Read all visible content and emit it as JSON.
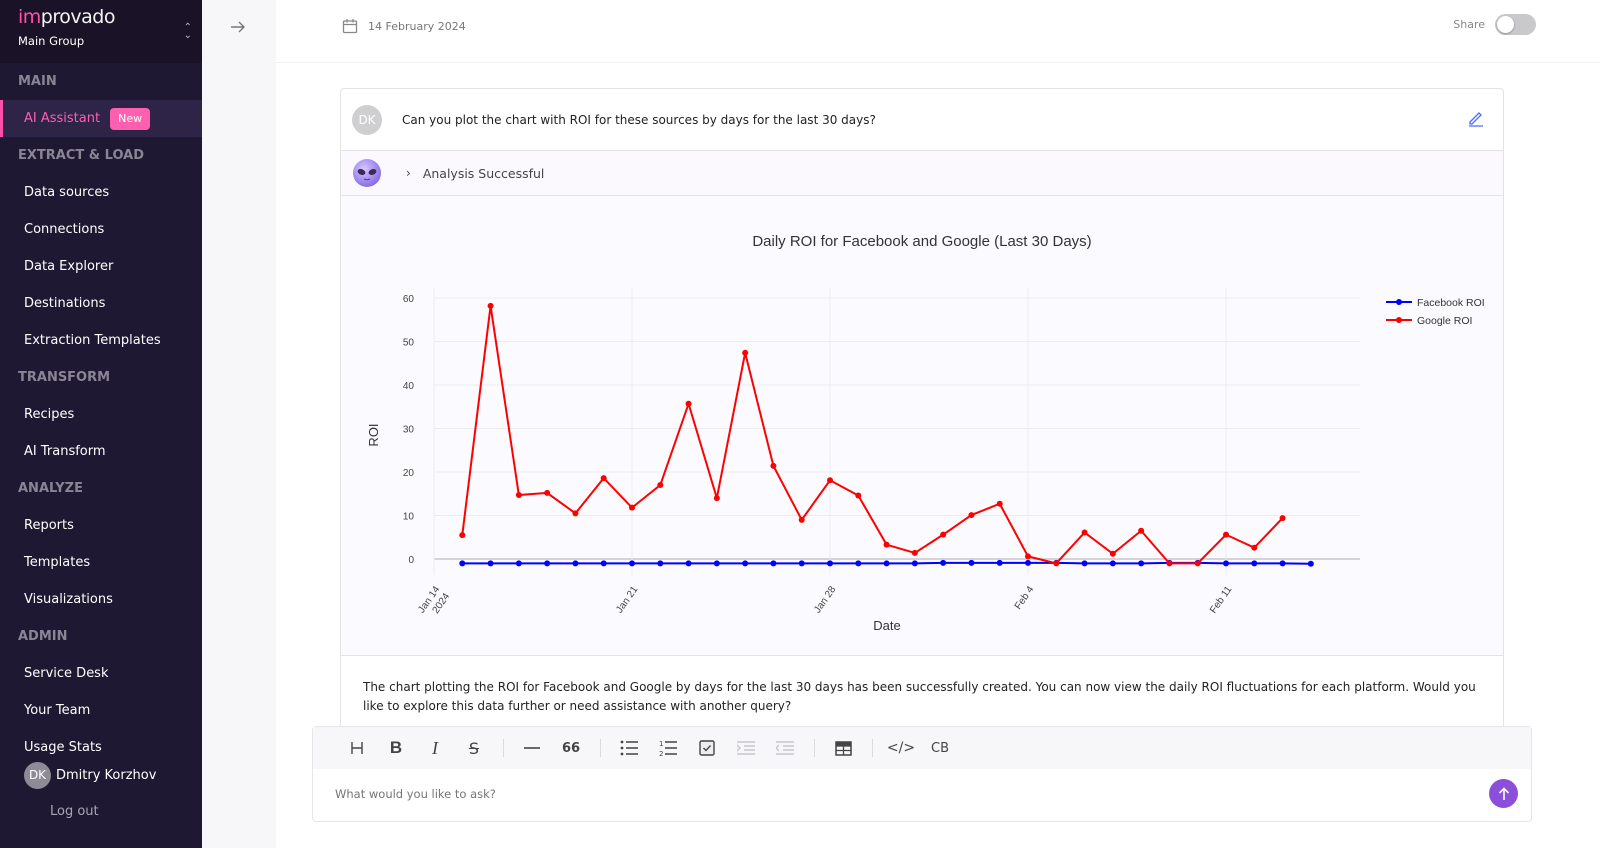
{
  "sidebar": {
    "logo_im": "im",
    "logo_rest": "provado",
    "group": "Main Group",
    "sections": [
      {
        "title": "MAIN",
        "items": [
          {
            "label": "AI Assistant",
            "badge": "New",
            "active": true
          }
        ]
      },
      {
        "title": "EXTRACT & LOAD",
        "items": [
          {
            "label": "Data sources"
          },
          {
            "label": "Connections"
          },
          {
            "label": "Data Explorer"
          },
          {
            "label": "Destinations"
          },
          {
            "label": "Extraction Templates"
          }
        ]
      },
      {
        "title": "TRANSFORM",
        "items": [
          {
            "label": "Recipes"
          },
          {
            "label": "AI Transform"
          }
        ]
      },
      {
        "title": "ANALYZE",
        "items": [
          {
            "label": "Reports"
          },
          {
            "label": "Templates"
          },
          {
            "label": "Visualizations"
          }
        ]
      },
      {
        "title": "ADMIN",
        "items": [
          {
            "label": "Service Desk"
          },
          {
            "label": "Your Team"
          },
          {
            "label": "Usage Stats"
          }
        ]
      }
    ],
    "user": {
      "initials": "DK",
      "name": "Dmitry Korzhov"
    },
    "logout": "Log out"
  },
  "header": {
    "date": "14 February 2024",
    "share_label": "Share",
    "share_enabled": false
  },
  "conversation": {
    "question": {
      "initials": "DK",
      "text": "Can you plot the chart with ROI for these sources by days for the last 30 days?"
    },
    "analysis_status": "Analysis Successful",
    "answer": "The chart plotting the ROI for Facebook and Google by days for the last 30 days has been successfully created. You can now view the daily ROI fluctuations for each platform. Would you like to explore this data further or need assistance with another query?"
  },
  "composer": {
    "placeholder": "What would you like to ask?",
    "toolbar": [
      "heading",
      "bold",
      "italic",
      "strikethrough",
      "|",
      "horizontal-rule",
      "blockquote",
      "|",
      "bullet-list",
      "ordered-list",
      "task-list",
      "indent",
      "outdent",
      "|",
      "table",
      "|",
      "code",
      "code-block"
    ]
  },
  "chart_data": {
    "type": "line",
    "title": "Daily ROI for Facebook and Google (Last 30 Days)",
    "xlabel": "Date",
    "ylabel": "ROI",
    "ylim": [
      -2,
      62
    ],
    "yticks": [
      0,
      10,
      20,
      30,
      40,
      50,
      60
    ],
    "xticks": [
      {
        "label": "Jan 14",
        "sublabel": "2024",
        "date": "2024-01-14"
      },
      {
        "label": "Jan 21",
        "date": "2024-01-21"
      },
      {
        "label": "Jan 28",
        "date": "2024-01-28"
      },
      {
        "label": "Feb 4",
        "date": "2024-02-04"
      },
      {
        "label": "Feb 11",
        "date": "2024-02-11"
      }
    ],
    "x_start": "2024-01-15",
    "grid": true,
    "legend_position": "top-right",
    "series": [
      {
        "name": "Facebook ROI",
        "color": "#0000ff",
        "values": [
          -1,
          -1,
          -1,
          -1,
          -1,
          -1,
          -1,
          -1,
          -1,
          -1,
          -1,
          -1,
          -1,
          -1,
          -1,
          -1,
          -1,
          -0.9,
          -0.9,
          -0.9,
          -0.9,
          -0.9,
          -1,
          -1,
          -1,
          -0.9,
          -0.9,
          -1,
          -1,
          -1,
          -1.1
        ]
      },
      {
        "name": "Google ROI",
        "color": "#ff0000",
        "values": [
          5.5,
          58.2,
          14.7,
          15.2,
          10.5,
          18.6,
          11.8,
          17.0,
          35.7,
          14.0,
          47.4,
          21.4,
          9.0,
          18.1,
          14.6,
          3.3,
          1.4,
          5.6,
          10.1,
          12.7,
          0.6,
          -1.0,
          6.1,
          1.2,
          6.5,
          -1.0,
          -1.0,
          5.6,
          2.6,
          9.4
        ]
      }
    ]
  }
}
